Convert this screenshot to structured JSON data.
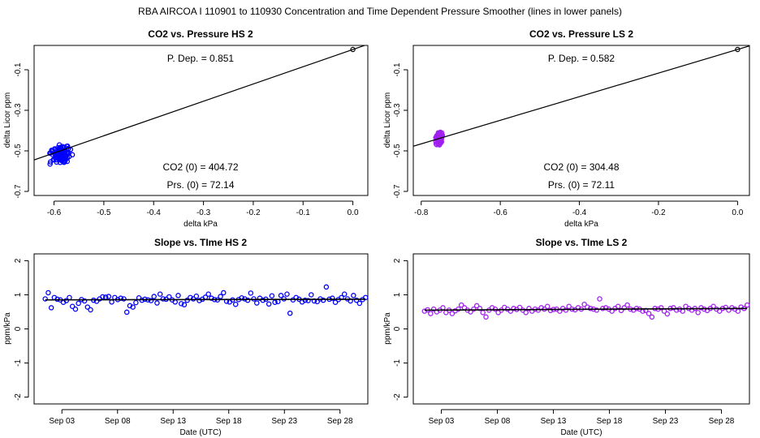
{
  "figure_title": "RBA   AIRCOA I   110901 to 110930   Concentration and Time Dependent Pressure Smoother (lines in lower panels)",
  "chart_data": [
    {
      "id": "hs-pressure",
      "type": "scatter",
      "title": "CO2 vs. Pressure HS 2",
      "xlabel": "delta kPa",
      "ylabel": "delta Licor ppm",
      "xlim": [
        -0.64,
        0.03
      ],
      "ylim": [
        -0.72,
        0.02
      ],
      "xticks": [
        -0.6,
        -0.5,
        -0.4,
        -0.3,
        -0.2,
        -0.1,
        0.0
      ],
      "xtick_labels": [
        "-0.6",
        "-0.5",
        "-0.4",
        "-0.3",
        "-0.2",
        "-0.1",
        "0.0"
      ],
      "yticks": [
        -0.7,
        -0.5,
        -0.3,
        -0.1
      ],
      "ytick_labels": [
        "-0.7",
        "-0.5",
        "-0.3",
        "-0.1"
      ],
      "color": "#0000ff",
      "annotations": {
        "pdep": "P. Dep. =  0.851",
        "co2_0": "CO2 (0) =  404.72",
        "prs_0": "Prs. (0) =  72.14"
      },
      "fit": {
        "slope": 0.851,
        "intercept": 0.0
      },
      "reference_point": [
        0.0,
        0.0
      ],
      "cluster": {
        "x_center": -0.585,
        "x_spread": 0.03,
        "y_center": -0.52,
        "y_spread": 0.07,
        "n": 110
      }
    },
    {
      "id": "ls-pressure",
      "type": "scatter",
      "title": "CO2 vs. Pressure LS 2",
      "xlabel": "delta kPa",
      "ylabel": "delta Licor ppm",
      "xlim": [
        -0.82,
        0.03
      ],
      "ylim": [
        -0.72,
        0.02
      ],
      "xticks": [
        -0.8,
        -0.6,
        -0.4,
        -0.2,
        0.0
      ],
      "xtick_labels": [
        "-0.8",
        "-0.6",
        "-0.4",
        "-0.2",
        "0.0"
      ],
      "yticks": [
        -0.7,
        -0.5,
        -0.3,
        -0.1
      ],
      "ytick_labels": [
        "-0.7",
        "-0.5",
        "-0.3",
        "-0.1"
      ],
      "color": "#a020f0",
      "annotations": {
        "pdep": "P. Dep. =  0.582",
        "co2_0": "CO2 (0) =  304.48",
        "prs_0": "Prs. (0) =  72.11"
      },
      "fit": {
        "slope": 0.582,
        "intercept": 0.0
      },
      "reference_point": [
        0.0,
        0.0
      ],
      "cluster": {
        "x_center": -0.755,
        "x_spread": 0.012,
        "y_center": -0.44,
        "y_spread": 0.055,
        "n": 130
      }
    },
    {
      "id": "hs-time",
      "type": "scatter",
      "title": "Slope vs. TIme HS 2",
      "xlabel": "Date (UTC)",
      "ylabel": "ppm/kPa",
      "xlim": [
        0.5,
        30.5
      ],
      "ylim": [
        -2.2,
        2.2
      ],
      "xticks": [
        3,
        8,
        13,
        18,
        23,
        28
      ],
      "xtick_labels": [
        "Sep 03",
        "Sep 08",
        "Sep 13",
        "Sep 18",
        "Sep 23",
        "Sep 28"
      ],
      "yticks": [
        -2,
        -1,
        0,
        1,
        2
      ],
      "ytick_labels": [
        "-2",
        "-1",
        "0",
        "1",
        "2"
      ],
      "color": "#0000ff",
      "smoother": {
        "x": [
          1.5,
          30.3
        ],
        "y": [
          0.85,
          0.87
        ]
      },
      "series_x_range": [
        1.5,
        30.3
      ],
      "values": [
        0.88,
        1.06,
        0.62,
        0.92,
        0.87,
        0.85,
        0.78,
        0.83,
        0.92,
        0.66,
        0.58,
        0.75,
        0.86,
        0.82,
        0.64,
        0.56,
        0.84,
        0.81,
        0.88,
        0.94,
        0.93,
        0.95,
        0.79,
        0.92,
        0.86,
        0.9,
        0.88,
        0.49,
        0.68,
        0.64,
        0.77,
        0.91,
        0.84,
        0.87,
        0.85,
        0.83,
        0.95,
        0.76,
        1.02,
        0.88,
        0.87,
        0.94,
        0.85,
        0.79,
        0.98,
        0.74,
        0.71,
        0.84,
        0.92,
        0.88,
        0.96,
        0.83,
        0.87,
        0.93,
        1.02,
        0.9,
        0.86,
        0.85,
        0.95,
        1.06,
        0.81,
        0.79,
        0.85,
        0.72,
        0.86,
        0.91,
        0.88,
        0.84,
        1.05,
        0.88,
        0.76,
        0.9,
        0.84,
        0.87,
        0.73,
        0.97,
        0.78,
        0.8,
        0.98,
        0.88,
        1.02,
        0.46,
        0.85,
        0.92,
        0.87,
        0.79,
        0.84,
        0.83,
        1.0,
        0.82,
        0.8,
        0.88,
        0.84,
        1.23,
        0.87,
        0.9,
        0.78,
        0.86,
        0.92,
        1.02,
        0.88,
        0.82,
        0.98,
        0.84,
        0.75,
        0.86,
        0.92
      ]
    },
    {
      "id": "ls-time",
      "type": "scatter",
      "title": "Slope vs. TIme LS 2",
      "xlabel": "Date (UTC)",
      "ylabel": "ppm/kPa",
      "xlim": [
        0.5,
        30.5
      ],
      "ylim": [
        -2.2,
        2.2
      ],
      "xticks": [
        3,
        8,
        13,
        18,
        23,
        28
      ],
      "xtick_labels": [
        "Sep 03",
        "Sep 08",
        "Sep 13",
        "Sep 18",
        "Sep 23",
        "Sep 28"
      ],
      "yticks": [
        -2,
        -1,
        0,
        1,
        2
      ],
      "ytick_labels": [
        "-2",
        "-1",
        "0",
        "1",
        "2"
      ],
      "color": "#a020f0",
      "smoother": {
        "x": [
          1.5,
          30.3
        ],
        "y": [
          0.55,
          0.6
        ]
      },
      "series_x_range": [
        1.5,
        30.3
      ],
      "values": [
        0.52,
        0.56,
        0.45,
        0.58,
        0.5,
        0.55,
        0.62,
        0.48,
        0.55,
        0.45,
        0.53,
        0.58,
        0.7,
        0.62,
        0.55,
        0.5,
        0.58,
        0.68,
        0.6,
        0.48,
        0.35,
        0.55,
        0.62,
        0.58,
        0.48,
        0.55,
        0.63,
        0.58,
        0.52,
        0.6,
        0.57,
        0.63,
        0.55,
        0.48,
        0.6,
        0.52,
        0.58,
        0.55,
        0.62,
        0.58,
        0.66,
        0.54,
        0.57,
        0.58,
        0.52,
        0.6,
        0.55,
        0.66,
        0.58,
        0.56,
        0.62,
        0.58,
        0.72,
        0.64,
        0.6,
        0.58,
        0.55,
        0.88,
        0.6,
        0.62,
        0.58,
        0.52,
        0.6,
        0.66,
        0.54,
        0.62,
        0.7,
        0.58,
        0.55,
        0.6,
        0.58,
        0.52,
        0.54,
        0.45,
        0.35,
        0.6,
        0.58,
        0.62,
        0.52,
        0.44,
        0.6,
        0.62,
        0.55,
        0.58,
        0.52,
        0.66,
        0.6,
        0.55,
        0.6,
        0.48,
        0.62,
        0.58,
        0.54,
        0.6,
        0.66,
        0.58,
        0.52,
        0.6,
        0.63,
        0.55,
        0.62,
        0.58,
        0.52,
        0.64,
        0.6,
        0.7
      ]
    }
  ]
}
